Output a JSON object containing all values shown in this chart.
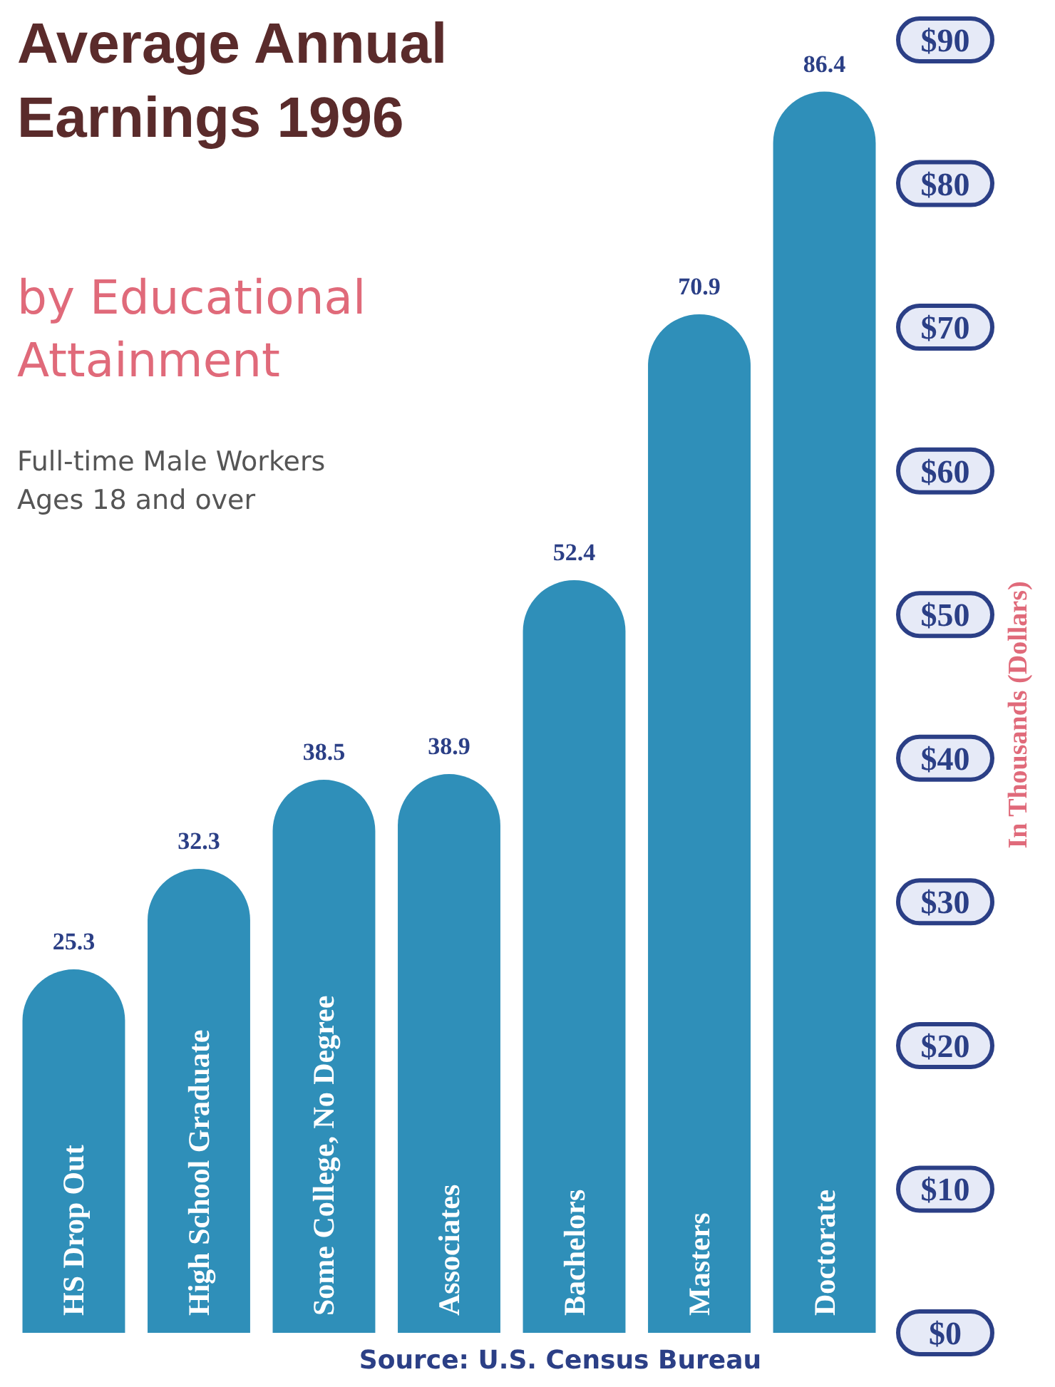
{
  "chart_data": {
    "type": "bar",
    "title": "Average Annual Earnings 1996",
    "subtitle": "by Educational Attainment",
    "ylabel": "In Thousands (Dollars)",
    "annotations": [
      "Full-time Male Workers",
      "Ages 18 and over",
      "Source: U.S. Census Bureau"
    ],
    "categories": [
      "HS Drop Out",
      "High School Graduate",
      "Some College, No Degree",
      "Associates",
      "Bachelors",
      "Masters",
      "Doctorate"
    ],
    "values": [
      25.3,
      32.3,
      38.5,
      38.9,
      52.4,
      70.9,
      86.4
    ],
    "color": "#2f8fb9",
    "data_labels": true,
    "ylim": [
      0,
      90
    ],
    "yticks": [
      {
        "value": 0,
        "label": "$0"
      },
      {
        "value": 10,
        "label": "$10"
      },
      {
        "value": 20,
        "label": "$20"
      },
      {
        "value": 30,
        "label": "$30"
      },
      {
        "value": 40,
        "label": "$40"
      },
      {
        "value": 50,
        "label": "$50"
      },
      {
        "value": 60,
        "label": "$60"
      },
      {
        "value": 70,
        "label": "$70"
      },
      {
        "value": 80,
        "label": "$80"
      },
      {
        "value": 90,
        "label": "$90"
      }
    ],
    "grid": false
  }
}
